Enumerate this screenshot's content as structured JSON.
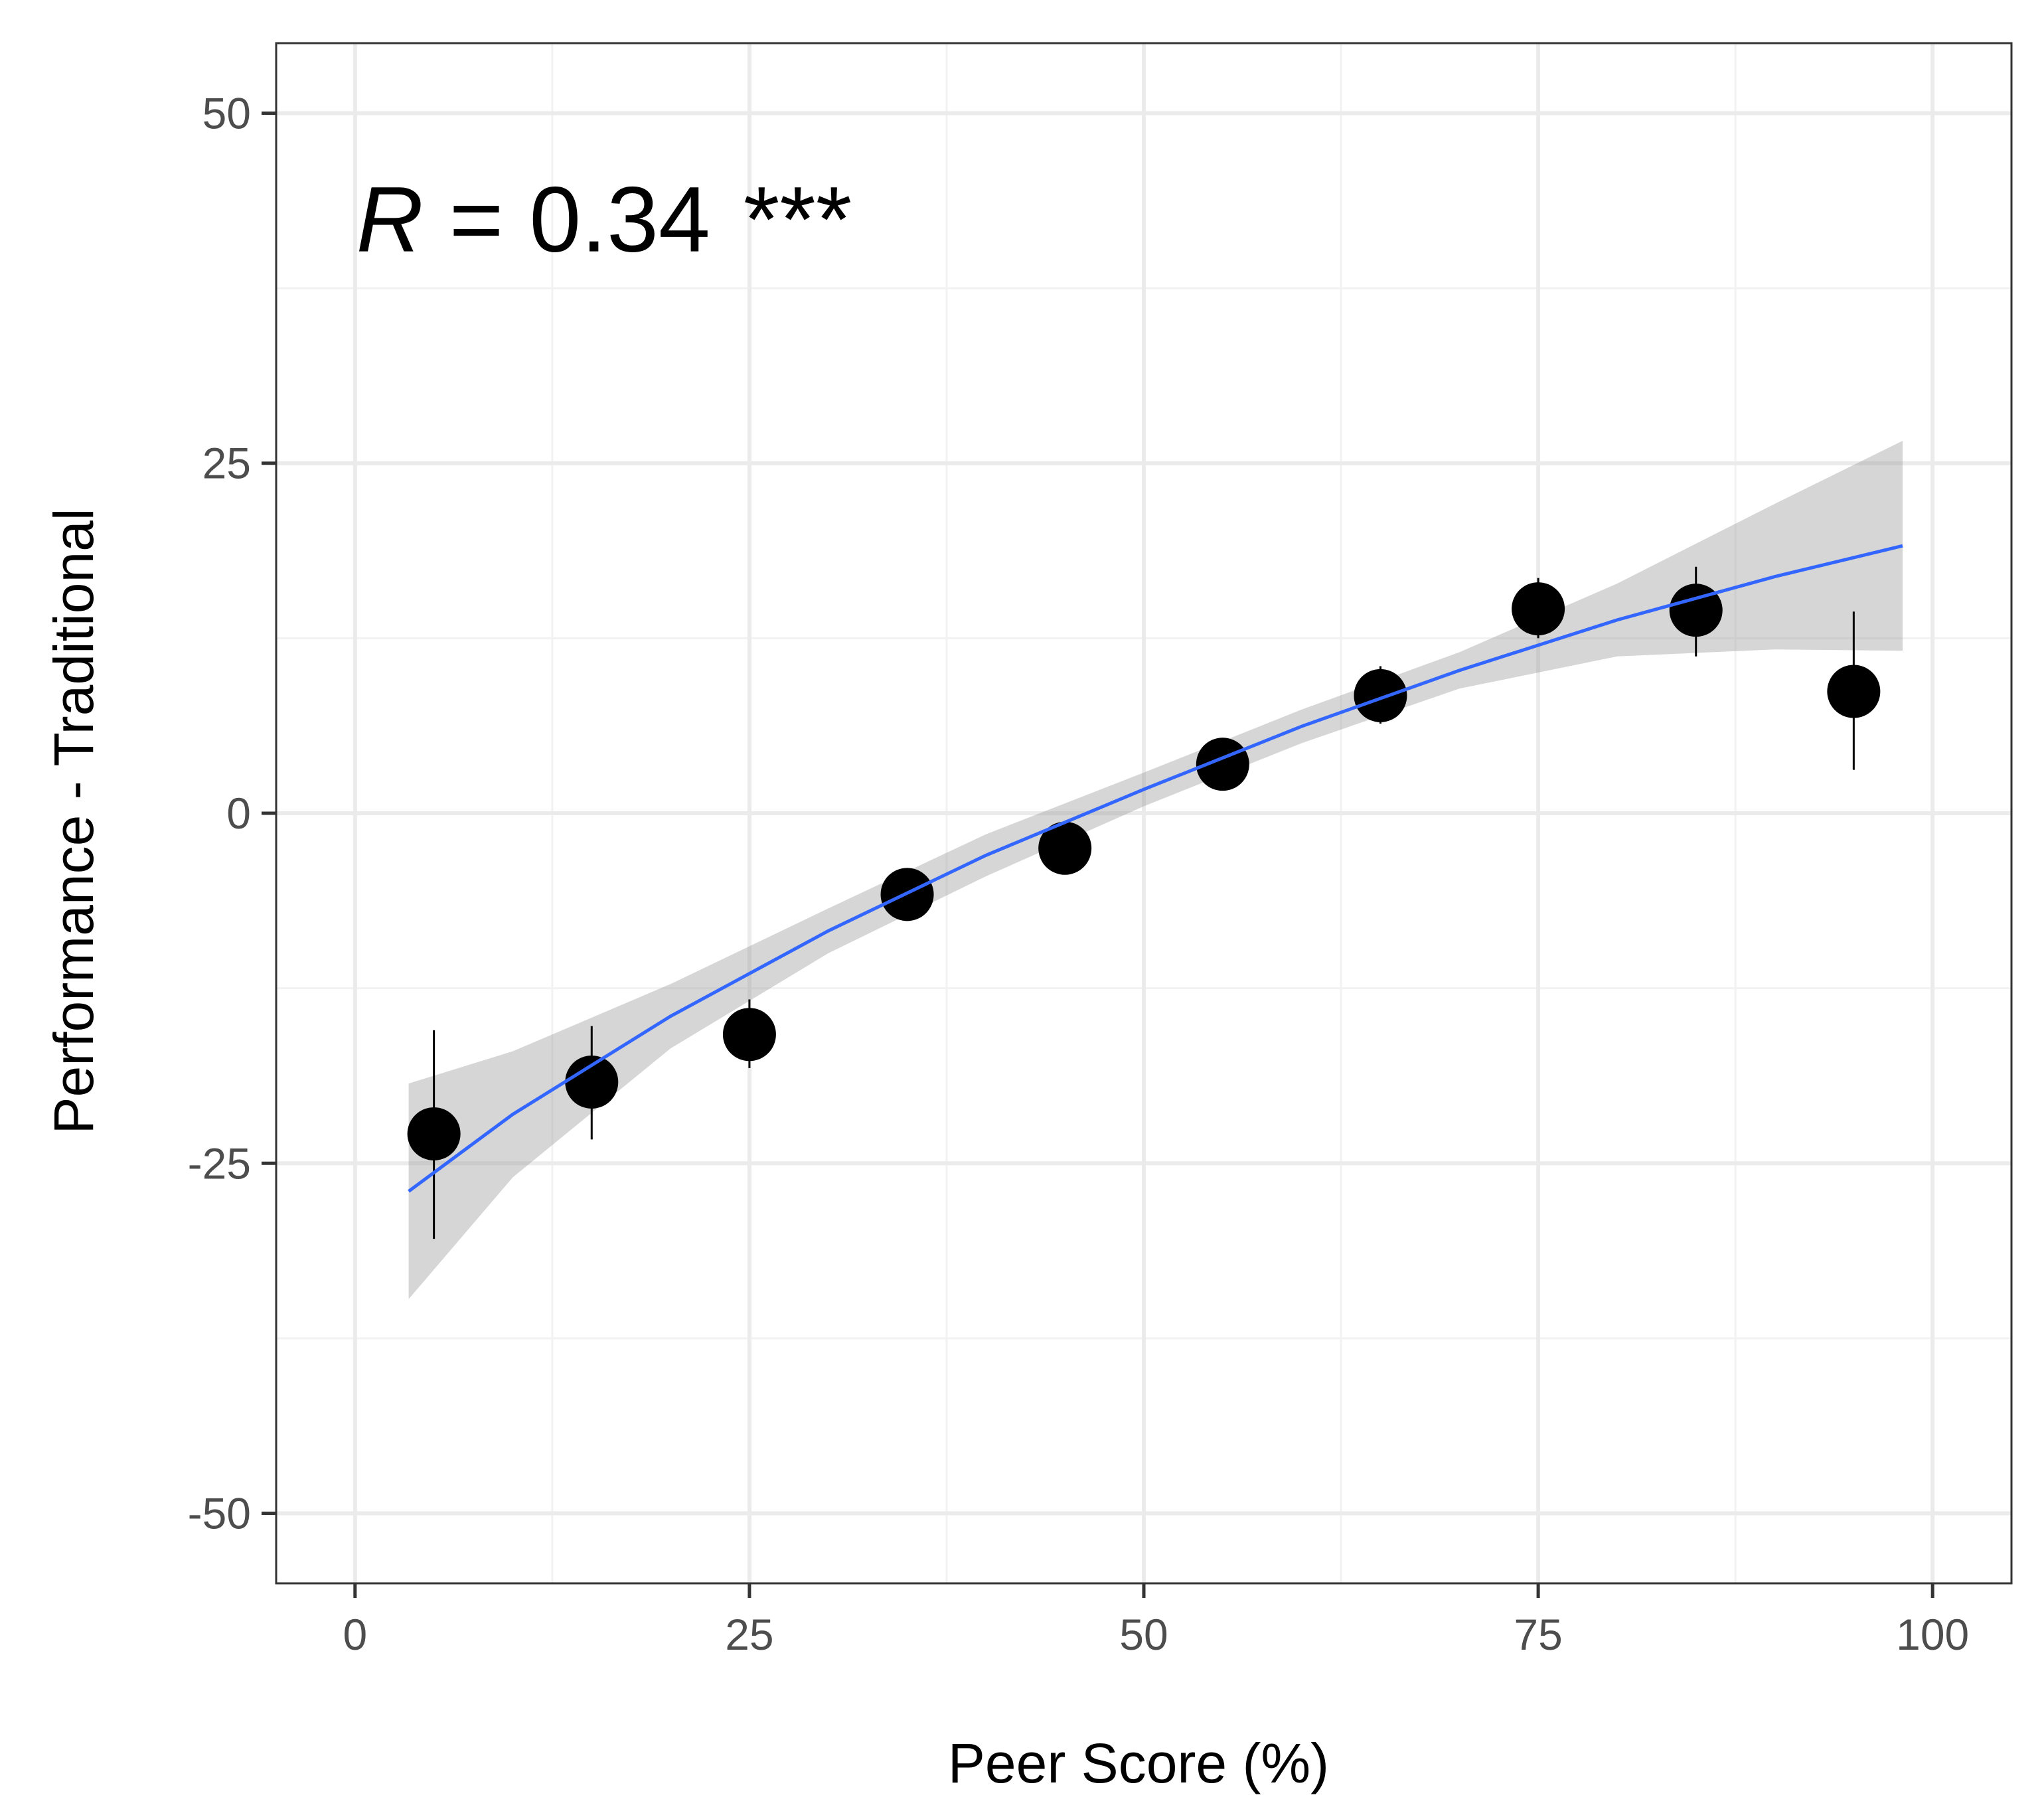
{
  "chart_data": {
    "type": "scatter",
    "xlabel": "Peer Score (%)",
    "ylabel": "Performance - Traditional",
    "xlim": [
      -5,
      105
    ],
    "ylim": [
      -55,
      55
    ],
    "x_ticks": [
      0,
      25,
      50,
      75,
      100
    ],
    "x_tick_labels": [
      "0",
      "25",
      "50",
      "75",
      "100"
    ],
    "y_ticks": [
      -50,
      -25,
      0,
      25,
      50
    ],
    "y_tick_labels": [
      "-50",
      "-25",
      "0",
      "25",
      "50"
    ],
    "grid": true,
    "annotation": {
      "var": "R",
      "eq": " = ",
      "value": "0.34",
      "stars": "***",
      "x": 0.5,
      "y": 42.5
    },
    "points": [
      {
        "x": 5,
        "y": -22.9,
        "lo": -30.4,
        "hi": -15.5
      },
      {
        "x": 15,
        "y": -19.2,
        "lo": -23.3,
        "hi": -15.2
      },
      {
        "x": 25,
        "y": -15.8,
        "lo": -18.2,
        "hi": -13.3
      },
      {
        "x": 35,
        "y": -5.8,
        "lo": -7.0,
        "hi": -4.6
      },
      {
        "x": 45,
        "y": -2.5,
        "lo": -3.6,
        "hi": -1.4
      },
      {
        "x": 55,
        "y": 3.5,
        "lo": 2.4,
        "hi": 4.7
      },
      {
        "x": 65,
        "y": 8.4,
        "lo": 6.4,
        "hi": 10.5
      },
      {
        "x": 75,
        "y": 14.6,
        "lo": 12.5,
        "hi": 16.8
      },
      {
        "x": 85,
        "y": 14.5,
        "lo": 11.2,
        "hi": 17.6
      },
      {
        "x": 95,
        "y": 8.7,
        "lo": 3.1,
        "hi": 14.4
      }
    ],
    "smooth": {
      "x": [
        3.4,
        10,
        20,
        30,
        40,
        50,
        60,
        70,
        80,
        90,
        98.1
      ],
      "y": [
        -27.0,
        -21.5,
        -14.5,
        -8.4,
        -3.0,
        1.7,
        6.2,
        10.2,
        13.8,
        16.9,
        19.1
      ],
      "ymin": [
        -34.7,
        -26.0,
        -16.8,
        -10.0,
        -4.5,
        0.5,
        5.0,
        8.9,
        11.2,
        11.7,
        11.6
      ],
      "ymax": [
        -19.3,
        -17.0,
        -12.2,
        -6.8,
        -1.5,
        2.9,
        7.4,
        11.5,
        16.4,
        22.1,
        26.6
      ]
    },
    "colors": {
      "point": "#000000",
      "point_overlay": "#333333",
      "line": "#3366FF",
      "ribbon": "#999999",
      "grid_major": "#EBEBEB",
      "grid_minor": "#F2F2F2",
      "panel_border": "#333333",
      "tick_label": "#4D4D4D"
    }
  }
}
